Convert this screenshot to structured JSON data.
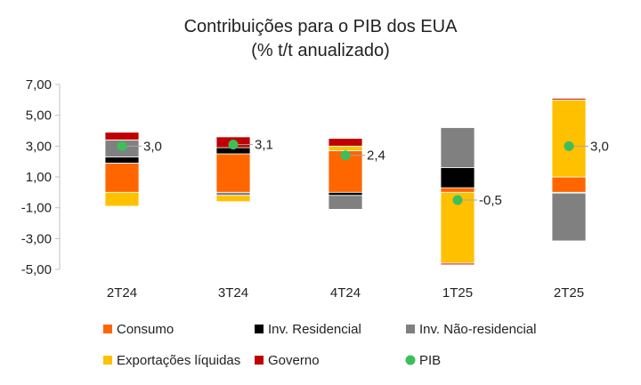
{
  "chart_data": {
    "type": "bar",
    "stacked": true,
    "title": "Contribuições para o PIB dos EUA",
    "subtitle": "(% t/t anualizado)",
    "xlabel": "",
    "ylabel": "",
    "ylim": [
      -5,
      7
    ],
    "yticks": [
      7,
      5,
      3,
      1,
      -1,
      -3,
      -5
    ],
    "ytick_labels": [
      "7,00",
      "5,00",
      "3,00",
      "1,00",
      "-1,00",
      "-3,00",
      "-5,00"
    ],
    "categories": [
      "2T24",
      "3T24",
      "4T24",
      "1T25",
      "2T25"
    ],
    "series": [
      {
        "name": "Consumo",
        "color": "#FF6600",
        "kind": "bar",
        "values": [
          1.9,
          2.5,
          2.7,
          0.3,
          1.0
        ]
      },
      {
        "name": "Inv. Residencial",
        "color": "#000000",
        "kind": "bar",
        "values": [
          0.4,
          0.4,
          -0.2,
          1.3,
          -0.05
        ]
      },
      {
        "name": "Inv. Não-residencial",
        "color": "#808080",
        "kind": "bar",
        "values": [
          1.1,
          -0.2,
          -0.9,
          2.6,
          -3.1
        ]
      },
      {
        "name": "Exportações líquidas",
        "color": "#FFC000",
        "kind": "bar",
        "values": [
          -0.9,
          -0.4,
          0.3,
          -4.6,
          5.0
        ]
      },
      {
        "name": "Governo",
        "color": "#C00000",
        "kind": "bar",
        "values": [
          0.5,
          0.7,
          0.5,
          -0.1,
          0.1
        ]
      },
      {
        "name": "PIB",
        "color": "#3DBE5C",
        "kind": "point",
        "values": [
          3.0,
          3.1,
          2.4,
          -0.5,
          3.0
        ]
      }
    ],
    "pib_labels": [
      "3,0",
      "3,1",
      "2,4",
      "-0,5",
      "3,0"
    ],
    "legend_position": "bottom",
    "grid": false
  }
}
